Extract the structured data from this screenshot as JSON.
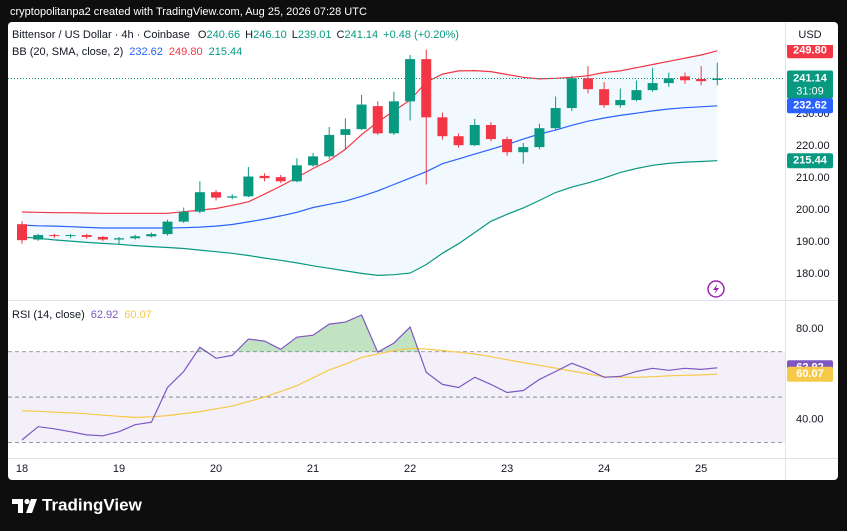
{
  "header": {
    "text": "cryptopolitanpa2 created with TradingView.com, Aug 25, 2026 07:28 UTC"
  },
  "footer": {
    "logo": "TradingView"
  },
  "chart_data": [
    {
      "type": "candlestick",
      "title": "Bittensor / US Dollar · 4h · Coinbase",
      "legend": [
        {
          "key": "O",
          "text": "240.66"
        },
        {
          "key": "H",
          "text": "246.10"
        },
        {
          "key": "L",
          "text": "239.01"
        },
        {
          "key": "C",
          "text": "241.14"
        }
      ],
      "change": "+0.48 (+0.20%)",
      "currency": "USD",
      "up_color": "#089981",
      "down_color": "#f23645",
      "categories": [
        "18",
        null,
        null,
        null,
        null,
        null,
        "19",
        null,
        null,
        null,
        null,
        null,
        "20",
        null,
        null,
        null,
        null,
        null,
        "21",
        null,
        null,
        null,
        null,
        null,
        "22",
        null,
        null,
        null,
        null,
        null,
        "23",
        null,
        null,
        null,
        null,
        null,
        "24",
        null,
        null,
        null,
        null,
        null,
        "25",
        null
      ],
      "open": [
        195.6,
        190.8,
        192.2,
        191.9,
        192.2,
        191.6,
        190.8,
        191.2,
        191.8,
        192.5,
        196.4,
        199.5,
        205.6,
        203.9,
        204.3,
        210.7,
        210.3,
        209.0,
        214.0,
        216.8,
        223.5,
        225.3,
        232.5,
        224.0,
        234.0,
        247.2,
        229.0,
        223.1,
        220.3,
        226.6,
        222.2,
        218.1,
        219.7,
        225.6,
        231.9,
        241.2,
        237.8,
        232.8,
        234.4,
        237.5,
        239.7,
        241.8,
        241.0,
        240.66
      ],
      "high": [
        196.5,
        192.6,
        192.6,
        192.5,
        192.5,
        191.9,
        191.6,
        192.3,
        193.0,
        197.0,
        200.8,
        209.0,
        206.3,
        205.0,
        213.5,
        211.5,
        211.0,
        216.2,
        217.8,
        226.0,
        228.7,
        236.0,
        234.0,
        237.0,
        248.5,
        250.2,
        230.5,
        224.0,
        228.5,
        227.5,
        223.0,
        221.0,
        227.0,
        235.5,
        242.0,
        245.0,
        240.0,
        238.0,
        240.5,
        244.5,
        243.0,
        243.0,
        245.0,
        246.1
      ],
      "low": [
        189.5,
        190.4,
        191.3,
        191.2,
        191.0,
        190.3,
        189.4,
        190.8,
        191.5,
        192.0,
        196.0,
        199.0,
        203.0,
        203.4,
        204.0,
        209.0,
        208.5,
        208.7,
        213.5,
        216.0,
        218.8,
        225.0,
        223.5,
        223.5,
        228.0,
        208.0,
        222.0,
        219.5,
        220.0,
        221.5,
        217.0,
        214.5,
        219.0,
        225.0,
        231.0,
        236.5,
        232.0,
        232.0,
        234.0,
        237.0,
        238.5,
        239.5,
        239.0,
        239.01
      ],
      "close": [
        190.6,
        192.2,
        191.9,
        192.2,
        191.6,
        190.8,
        191.2,
        191.8,
        192.5,
        196.4,
        199.5,
        205.6,
        203.9,
        204.3,
        210.5,
        210.0,
        209.0,
        214.0,
        216.8,
        223.5,
        225.3,
        233.0,
        224.0,
        234.0,
        247.2,
        229.0,
        223.1,
        220.3,
        226.6,
        222.2,
        218.1,
        219.7,
        225.6,
        231.9,
        241.2,
        237.8,
        232.8,
        234.4,
        237.5,
        239.7,
        241.2,
        240.6,
        240.3,
        241.14
      ],
      "indicator": {
        "name": "BB (20, SMA, close, 2)",
        "legend": [
          {
            "text": "232.62",
            "color": "#2962ff"
          },
          {
            "text": "249.80",
            "color": "#f23645"
          },
          {
            "text": "215.44",
            "color": "#089981"
          }
        ]
      },
      "band_fill": "rgba(33,150,243,0.06)",
      "series": [
        {
          "color": "#2962ff",
          "values": [
            195.3,
            195.1,
            195.0,
            194.8,
            194.6,
            194.4,
            194.4,
            194.4,
            194.4,
            194.4,
            194.5,
            194.7,
            195.0,
            195.5,
            196.3,
            197.2,
            198.2,
            199.3,
            200.8,
            201.8,
            202.8,
            204.3,
            206.0,
            208.0,
            210.0,
            212.0,
            214.5,
            216.0,
            217.5,
            219.0,
            220.5,
            222.2,
            223.8,
            225.0,
            226.5,
            227.8,
            228.8,
            229.6,
            230.3,
            231.0,
            231.6,
            232.0,
            232.3,
            232.62
          ]
        },
        {
          "color": "#f23645",
          "values": [
            199.4,
            199.3,
            199.2,
            199.2,
            199.1,
            199.0,
            199.0,
            199.0,
            199.0,
            199.0,
            199.5,
            200.0,
            200.5,
            201.5,
            202.6,
            205.0,
            207.5,
            210.2,
            213.0,
            215.5,
            219.0,
            223.6,
            227.5,
            231.0,
            234.4,
            240.0,
            242.5,
            243.5,
            243.6,
            243.3,
            242.4,
            241.5,
            241.0,
            241.2,
            241.5,
            242.0,
            243.0,
            243.5,
            244.5,
            245.5,
            246.5,
            247.5,
            248.5,
            249.8
          ]
        },
        {
          "color": "#089981",
          "values": [
            191.6,
            191.2,
            190.7,
            190.3,
            189.9,
            189.6,
            189.3,
            188.9,
            188.6,
            188.3,
            188.0,
            187.5,
            187.0,
            186.5,
            185.8,
            185.0,
            184.3,
            183.5,
            182.6,
            181.8,
            181.0,
            180.2,
            179.6,
            179.8,
            180.3,
            183.0,
            186.5,
            189.5,
            193.0,
            196.5,
            198.7,
            200.7,
            203.0,
            205.5,
            207.2,
            208.5,
            210.0,
            211.8,
            213.0,
            214.0,
            214.6,
            215.0,
            215.2,
            215.44
          ]
        }
      ],
      "price_labels": [
        {
          "value": 249.8,
          "label": "249.80",
          "color": "#f23645"
        },
        {
          "value": 241.14,
          "label": "241.14",
          "color": "#089981",
          "countdown": "31:09"
        },
        {
          "value": 232.62,
          "label": "232.62",
          "color": "#2962ff"
        },
        {
          "value": 215.44,
          "label": "215.44",
          "color": "#089981"
        }
      ],
      "ylim": [
        171.9,
        258.8
      ],
      "yticks": [
        {
          "value": 180,
          "label": "180.00"
        },
        {
          "value": 190,
          "label": "190.00"
        },
        {
          "value": 200,
          "label": "200.00"
        },
        {
          "value": 210,
          "label": "210.00"
        },
        {
          "value": 220,
          "label": "220.00"
        },
        {
          "value": 230,
          "label": "230.00"
        }
      ]
    },
    {
      "type": "line",
      "title": "RSI (14, close)",
      "legend": [
        {
          "text": "62.92",
          "color": "#7e57c2"
        },
        {
          "text": "60.07",
          "color": "#f7c948"
        }
      ],
      "series": [
        {
          "color": "#7e57c2",
          "values": [
            31.1,
            36.9,
            36.0,
            34.7,
            33.3,
            32.9,
            34.7,
            37.8,
            38.9,
            54.2,
            61.3,
            72.0,
            67.1,
            68.4,
            75.6,
            74.7,
            71.1,
            76.4,
            77.3,
            82.2,
            83.1,
            86.2,
            69.8,
            73.8,
            80.9,
            60.9,
            55.6,
            54.2,
            58.7,
            55.6,
            52.0,
            52.9,
            57.8,
            61.3,
            64.9,
            62.2,
            58.7,
            59.1,
            61.3,
            62.7,
            61.8,
            62.7,
            62.2,
            62.92
          ]
        },
        {
          "color": "#f7c948",
          "values": [
            44.0,
            43.7,
            43.3,
            43.0,
            42.6,
            42.0,
            41.5,
            41.0,
            41.3,
            41.8,
            42.7,
            43.6,
            44.8,
            46.0,
            48.0,
            50.0,
            52.5,
            55.0,
            58.5,
            62.0,
            64.5,
            67.5,
            69.0,
            70.5,
            71.5,
            71.2,
            70.5,
            69.8,
            69.0,
            67.8,
            66.5,
            65.2,
            64.0,
            62.8,
            61.5,
            60.2,
            59.0,
            58.8,
            58.7,
            59.0,
            59.4,
            59.6,
            59.8,
            60.07
          ]
        }
      ],
      "levels": [
        30,
        50,
        70
      ],
      "band_color": "rgba(126,87,194,0.09)",
      "overbought_fill": "rgba(76,175,80,0.35)",
      "price_labels": [
        {
          "value": 62.92,
          "label": "62.92",
          "color": "#7e57c2"
        },
        {
          "value": 60.07,
          "label": "60.07",
          "color": "#f7c948"
        }
      ],
      "ylim": [
        23.1,
        92.4
      ],
      "yticks": [
        {
          "value": 40,
          "label": "40.00"
        },
        {
          "value": 80,
          "label": "80.00"
        }
      ]
    }
  ]
}
